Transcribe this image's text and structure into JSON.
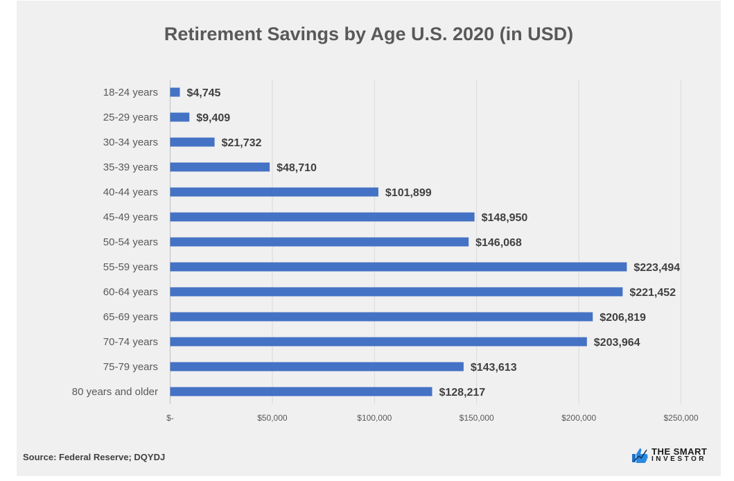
{
  "chart_data": {
    "type": "bar",
    "orientation": "horizontal",
    "title": "Retirement Savings by Age U.S. 2020 (in USD)",
    "categories": [
      "18-24 years",
      "25-29 years",
      "30-34 years",
      "35-39 years",
      "40-44 years",
      "45-49 years",
      "50-54 years",
      "55-59 years",
      "60-64 years",
      "65-69 years",
      "70-74 years",
      "75-79 years",
      "80 years and older"
    ],
    "values": [
      4745,
      9409,
      21732,
      48710,
      101899,
      148950,
      146068,
      223494,
      221452,
      206819,
      203964,
      143613,
      128217
    ],
    "data_labels": [
      "$4,745",
      "$9,409",
      "$21,732",
      "$48,710",
      "$101,899",
      "$148,950",
      "$146,068",
      "$223,494",
      "$221,452",
      "$206,819",
      "$203,964",
      "$143,613",
      "$128,217"
    ],
    "xlim": [
      0,
      250000
    ],
    "x_ticks": [
      0,
      50000,
      100000,
      150000,
      200000,
      250000
    ],
    "x_tick_labels": [
      "$-",
      "$50,000",
      "$100,000",
      "$150,000",
      "$200,000",
      "$250,000"
    ],
    "grid": "vertical",
    "bar_color": "#4472C4",
    "background": "#F0F0F0"
  },
  "footer": {
    "source": "Source: Federal Reserve; DQYDJ",
    "logo_line1": "THE SMART",
    "logo_line2": "INVESTOR"
  }
}
